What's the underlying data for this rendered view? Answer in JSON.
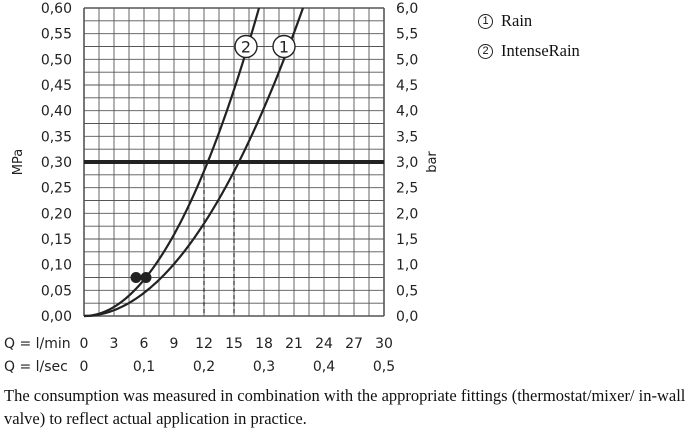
{
  "chart_data": {
    "type": "line",
    "ylabel_left": "MPa",
    "ylabel_right": "bar",
    "yticks_left": [
      "0,00",
      "0,05",
      "0,10",
      "0,15",
      "0,20",
      "0,25",
      "0,30",
      "0,35",
      "0,40",
      "0,45",
      "0,50",
      "0,55",
      "0,60"
    ],
    "yticks_right": [
      "0,0",
      "0,5",
      "1,0",
      "1,5",
      "2,0",
      "2,5",
      "3,0",
      "3,5",
      "4,0",
      "4,5",
      "5,0",
      "5,5",
      "6,0"
    ],
    "ylim": [
      0,
      0.6
    ],
    "xlim": [
      0,
      30
    ],
    "x_row1_label": "Q = l/min",
    "x_row1_ticks": [
      "0",
      "3",
      "6",
      "9",
      "12",
      "15",
      "18",
      "21",
      "24",
      "27",
      "30"
    ],
    "x_row2_label": "Q = l/sec",
    "x_row2_ticks": [
      "0",
      "0,1",
      "0,2",
      "0,3",
      "0,4",
      "0,5"
    ],
    "reference_line": {
      "y": 0.3
    },
    "series": [
      {
        "name": "Rain",
        "marker": "1",
        "x": [
          0,
          3,
          6,
          9,
          12,
          15,
          18,
          21.9
        ],
        "y": [
          0,
          0.012,
          0.048,
          0.108,
          0.192,
          0.3,
          0.432,
          0.6
        ]
      },
      {
        "name": "IntenseRain",
        "marker": "2",
        "x": [
          0,
          3,
          6,
          9,
          12,
          15,
          17.5
        ],
        "y": [
          0,
          0.0208,
          0.0833,
          0.1875,
          0.3,
          0.469,
          0.6
        ]
      }
    ],
    "dashed_markers": [
      {
        "x": 12,
        "y": 0.3
      },
      {
        "x": 15,
        "y": 0.3
      }
    ],
    "dots": [
      {
        "x": 5.2,
        "y": 0.075
      },
      {
        "x": 6.2,
        "y": 0.075
      }
    ],
    "grid": true
  },
  "legend": {
    "items": [
      {
        "num": "1",
        "label": "Rain"
      },
      {
        "num": "2",
        "label": "IntenseRain"
      }
    ]
  },
  "caption": "The consumption was measured in combination with the appropriate fittings (thermostat/mixer/ in-wall valve) to reflect actual application in practice."
}
